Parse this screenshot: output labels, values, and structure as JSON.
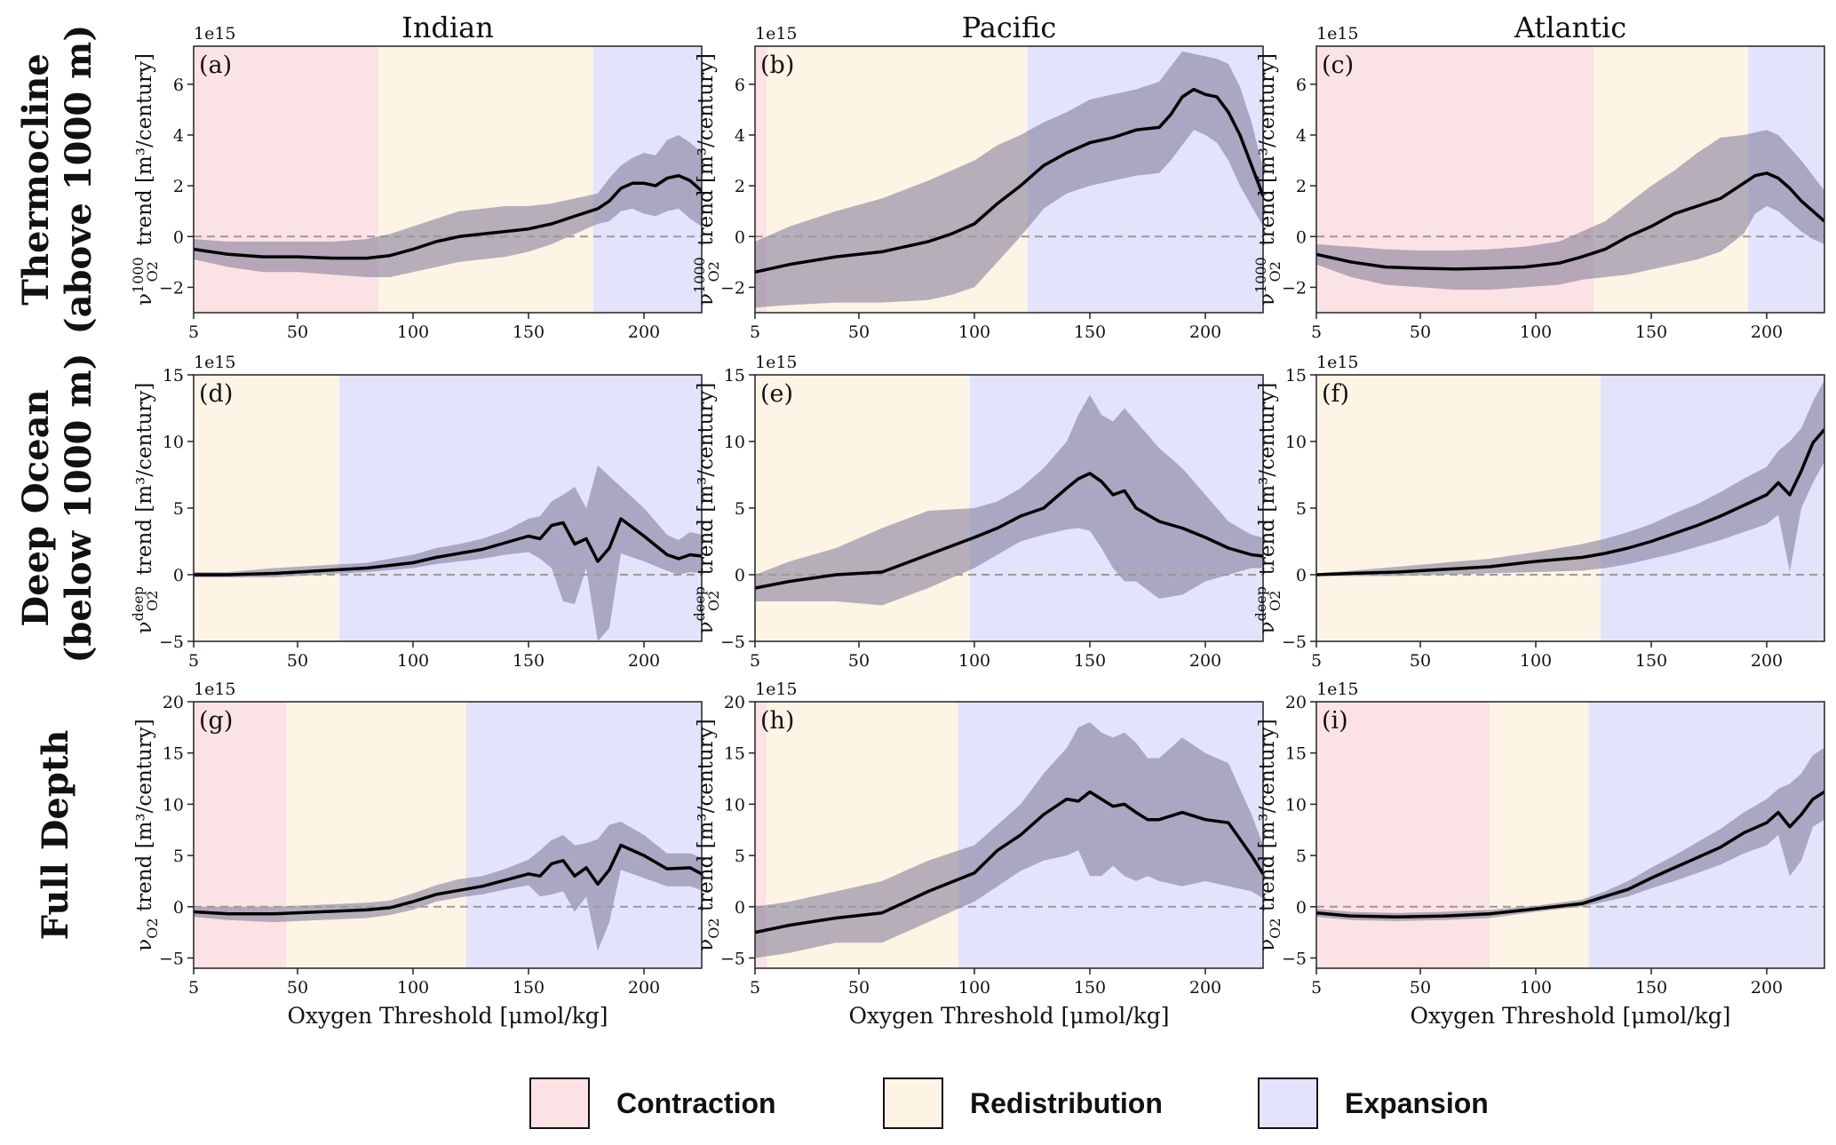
{
  "colors": {
    "contraction": "#fbe2e4",
    "redistribution": "#fdf4e6",
    "expansion": "#e3e3fb",
    "band": "#7c7794",
    "line": "#000000",
    "zero_line": "#9a9a9a"
  },
  "figure": {
    "column_titles": [
      "Indian",
      "Pacific",
      "Atlantic"
    ],
    "row_titles": [
      [
        "Thermocline",
        "(above 1000 m)"
      ],
      [
        "Deep Ocean",
        "(below 1000 m)"
      ],
      [
        "Full Depth"
      ]
    ],
    "xlabel": "Oxygen Threshold [μmol/kg]",
    "exponent_label": "1e15",
    "row_ylabels": [
      {
        "prefix": "ν",
        "sup": "1000",
        "sub": "O2",
        "suffix": " trend [m³/century]"
      },
      {
        "prefix": "ν",
        "sup": "deep",
        "sub": "O2",
        "suffix": " trend [m³/century]"
      },
      {
        "prefix": "ν",
        "sup": "",
        "sub": "O2",
        "suffix": " trend [m³/century]"
      }
    ]
  },
  "legend": {
    "contraction": "Contraction",
    "redistribution": "Redistribution",
    "expansion": "Expansion"
  },
  "chart_data": [
    {
      "type": "line",
      "panel": "(a)",
      "ocean": "Indian",
      "layer": "Thermocline",
      "xlim": [
        5,
        225
      ],
      "ylim": [
        -3,
        7.5
      ],
      "xticks": [
        5,
        50,
        100,
        150,
        200
      ],
      "yticks": [
        -2,
        0,
        2,
        4,
        6
      ],
      "regions": [
        {
          "kind": "contraction",
          "from": 5,
          "to": 85
        },
        {
          "kind": "redistribution",
          "from": 85,
          "to": 178
        },
        {
          "kind": "expansion",
          "from": 178,
          "to": 225
        }
      ],
      "x": [
        5,
        20,
        35,
        50,
        65,
        80,
        90,
        100,
        110,
        120,
        130,
        140,
        150,
        160,
        170,
        180,
        185,
        190,
        195,
        200,
        205,
        210,
        215,
        220,
        225
      ],
      "y": [
        -0.5,
        -0.7,
        -0.8,
        -0.8,
        -0.85,
        -0.85,
        -0.75,
        -0.5,
        -0.2,
        0,
        0.1,
        0.2,
        0.3,
        0.5,
        0.8,
        1.1,
        1.4,
        1.9,
        2.1,
        2.1,
        2.0,
        2.3,
        2.4,
        2.2,
        1.8
      ],
      "lower": [
        -0.9,
        -1.2,
        -1.4,
        -1.4,
        -1.5,
        -1.6,
        -1.6,
        -1.4,
        -1.2,
        -1.0,
        -0.9,
        -0.8,
        -0.6,
        -0.3,
        0.1,
        0.5,
        0.6,
        1.0,
        1.1,
        0.9,
        0.8,
        1.0,
        1.1,
        0.7,
        0.4
      ],
      "upper": [
        -0.1,
        -0.2,
        -0.2,
        -0.2,
        -0.2,
        -0.1,
        0.1,
        0.4,
        0.7,
        1.0,
        1.1,
        1.2,
        1.2,
        1.3,
        1.5,
        1.7,
        2.3,
        2.8,
        3.1,
        3.3,
        3.2,
        3.8,
        4.0,
        3.7,
        3.3
      ]
    },
    {
      "type": "line",
      "panel": "(b)",
      "ocean": "Pacific",
      "layer": "Thermocline",
      "xlim": [
        5,
        225
      ],
      "ylim": [
        -3,
        7.5
      ],
      "xticks": [
        5,
        50,
        100,
        150,
        200
      ],
      "yticks": [
        -2,
        0,
        2,
        4,
        6
      ],
      "regions": [
        {
          "kind": "contraction",
          "from": 5,
          "to": 10
        },
        {
          "kind": "redistribution",
          "from": 10,
          "to": 123
        },
        {
          "kind": "expansion",
          "from": 123,
          "to": 225
        }
      ],
      "x": [
        5,
        20,
        40,
        60,
        80,
        90,
        100,
        110,
        120,
        130,
        140,
        150,
        160,
        170,
        180,
        185,
        190,
        195,
        200,
        205,
        210,
        215,
        220,
        225
      ],
      "y": [
        -1.4,
        -1.1,
        -0.8,
        -0.6,
        -0.2,
        0.1,
        0.5,
        1.3,
        2.0,
        2.8,
        3.3,
        3.7,
        3.9,
        4.2,
        4.3,
        4.8,
        5.5,
        5.8,
        5.6,
        5.5,
        4.9,
        4.0,
        2.8,
        1.6
      ],
      "lower": [
        -2.8,
        -2.7,
        -2.6,
        -2.6,
        -2.5,
        -2.3,
        -2.0,
        -1.0,
        0.0,
        1.1,
        1.7,
        2.0,
        2.2,
        2.4,
        2.5,
        3.0,
        3.6,
        4.2,
        4.0,
        3.7,
        3.0,
        2.0,
        1.2,
        0.4
      ],
      "upper": [
        -0.2,
        0.4,
        1.0,
        1.5,
        2.2,
        2.6,
        3.0,
        3.6,
        4.0,
        4.5,
        4.9,
        5.4,
        5.6,
        5.8,
        6.1,
        6.7,
        7.3,
        7.2,
        7.1,
        7.0,
        6.8,
        5.9,
        4.5,
        2.7
      ]
    },
    {
      "type": "line",
      "panel": "(c)",
      "ocean": "Atlantic",
      "layer": "Thermocline",
      "xlim": [
        5,
        225
      ],
      "ylim": [
        -3,
        7.5
      ],
      "xticks": [
        5,
        50,
        100,
        150,
        200
      ],
      "yticks": [
        -2,
        0,
        2,
        4,
        6
      ],
      "regions": [
        {
          "kind": "contraction",
          "from": 5,
          "to": 125
        },
        {
          "kind": "redistribution",
          "from": 125,
          "to": 192
        },
        {
          "kind": "expansion",
          "from": 192,
          "to": 225
        }
      ],
      "x": [
        5,
        20,
        35,
        50,
        65,
        80,
        95,
        110,
        120,
        130,
        140,
        150,
        160,
        170,
        180,
        190,
        195,
        200,
        205,
        210,
        215,
        220,
        225
      ],
      "y": [
        -0.7,
        -1.0,
        -1.2,
        -1.25,
        -1.28,
        -1.25,
        -1.2,
        -1.05,
        -0.8,
        -0.5,
        0,
        0.4,
        0.9,
        1.2,
        1.5,
        2.1,
        2.4,
        2.5,
        2.3,
        1.9,
        1.4,
        1.0,
        0.6
      ],
      "lower": [
        -1.1,
        -1.6,
        -1.9,
        -2.0,
        -2.1,
        -2.1,
        -2.0,
        -1.9,
        -1.7,
        -1.6,
        -1.5,
        -1.3,
        -1.1,
        -0.9,
        -0.6,
        0.1,
        0.9,
        1.2,
        1.0,
        0.6,
        0.2,
        -0.1,
        -0.3
      ],
      "upper": [
        -0.3,
        -0.4,
        -0.5,
        -0.55,
        -0.55,
        -0.5,
        -0.4,
        -0.2,
        0.2,
        0.6,
        1.3,
        2.0,
        2.6,
        3.3,
        3.9,
        4.0,
        4.1,
        4.2,
        4.0,
        3.5,
        3.0,
        2.4,
        1.8
      ]
    },
    {
      "type": "line",
      "panel": "(d)",
      "ocean": "Indian",
      "layer": "Deep Ocean",
      "xlim": [
        5,
        225
      ],
      "ylim": [
        -5,
        15
      ],
      "xticks": [
        5,
        50,
        100,
        150,
        200
      ],
      "yticks": [
        -5,
        0,
        5,
        10,
        15
      ],
      "regions": [
        {
          "kind": "redistribution",
          "from": 5,
          "to": 68
        },
        {
          "kind": "expansion",
          "from": 68,
          "to": 225
        }
      ],
      "x": [
        5,
        20,
        40,
        60,
        80,
        100,
        110,
        120,
        130,
        140,
        150,
        155,
        160,
        165,
        170,
        175,
        180,
        185,
        190,
        200,
        210,
        215,
        220,
        225
      ],
      "y": [
        0,
        0,
        0.1,
        0.3,
        0.5,
        0.9,
        1.3,
        1.6,
        1.9,
        2.4,
        2.9,
        2.7,
        3.7,
        3.9,
        2.3,
        2.7,
        1.0,
        2.0,
        4.2,
        2.9,
        1.5,
        1.2,
        1.5,
        1.4
      ],
      "lower": [
        -0.2,
        -0.2,
        -0.2,
        0,
        0.2,
        0.5,
        0.8,
        1.0,
        1.2,
        1.5,
        1.7,
        1.2,
        0.5,
        -2.0,
        -2.2,
        0.5,
        -5.0,
        -4.0,
        1.6,
        1.0,
        0.3,
        0.0,
        0.2,
        0.1
      ],
      "upper": [
        0.2,
        0.2,
        0.5,
        0.7,
        0.9,
        1.5,
        2.0,
        2.3,
        2.7,
        3.3,
        4.2,
        4.4,
        5.5,
        6.0,
        6.6,
        5.0,
        8.2,
        7.4,
        6.6,
        5.0,
        3.0,
        2.6,
        3.2,
        3.0
      ]
    },
    {
      "type": "line",
      "panel": "(e)",
      "ocean": "Pacific",
      "layer": "Deep Ocean",
      "xlim": [
        5,
        225
      ],
      "ylim": [
        -5,
        15
      ],
      "xticks": [
        5,
        50,
        100,
        150,
        200
      ],
      "yticks": [
        -5,
        0,
        5,
        10,
        15
      ],
      "regions": [
        {
          "kind": "redistribution",
          "from": 5,
          "to": 98
        },
        {
          "kind": "expansion",
          "from": 98,
          "to": 225
        }
      ],
      "x": [
        5,
        20,
        40,
        60,
        80,
        100,
        110,
        120,
        130,
        140,
        145,
        150,
        155,
        160,
        165,
        170,
        180,
        190,
        200,
        210,
        220,
        225
      ],
      "y": [
        -1.0,
        -0.5,
        0,
        0.2,
        1.5,
        2.8,
        3.5,
        4.4,
        5.0,
        6.5,
        7.2,
        7.6,
        7.0,
        6.0,
        6.3,
        5.0,
        4.0,
        3.5,
        2.8,
        2.0,
        1.5,
        1.4
      ],
      "lower": [
        -2.0,
        -2.0,
        -2.0,
        -2.3,
        -1.0,
        0.5,
        1.5,
        2.5,
        3.0,
        3.4,
        3.5,
        3.3,
        2.0,
        0.5,
        -0.5,
        -0.5,
        -1.8,
        -1.5,
        -0.5,
        0.0,
        0.5,
        0.5
      ],
      "upper": [
        0.0,
        1.0,
        2.0,
        3.5,
        4.8,
        5.0,
        5.5,
        6.5,
        8.0,
        10.0,
        12.0,
        13.5,
        12.0,
        11.5,
        12.5,
        11.5,
        9.5,
        8.0,
        6.0,
        4.0,
        3.0,
        2.8
      ]
    },
    {
      "type": "line",
      "panel": "(f)",
      "ocean": "Atlantic",
      "layer": "Deep Ocean",
      "xlim": [
        5,
        225
      ],
      "ylim": [
        -5,
        15
      ],
      "xticks": [
        5,
        50,
        100,
        150,
        200
      ],
      "yticks": [
        -5,
        0,
        5,
        10,
        15
      ],
      "regions": [
        {
          "kind": "redistribution",
          "from": 5,
          "to": 128
        },
        {
          "kind": "expansion",
          "from": 128,
          "to": 225
        }
      ],
      "x": [
        5,
        20,
        40,
        60,
        80,
        100,
        120,
        130,
        140,
        150,
        160,
        170,
        180,
        190,
        200,
        205,
        210,
        215,
        220,
        225
      ],
      "y": [
        0,
        0.1,
        0.2,
        0.4,
        0.6,
        1.0,
        1.3,
        1.6,
        2.0,
        2.5,
        3.1,
        3.7,
        4.4,
        5.2,
        6.0,
        6.9,
        6.0,
        7.8,
        9.9,
        10.9
      ],
      "lower": [
        -0.1,
        -0.1,
        -0.1,
        0,
        0.1,
        0.2,
        0.3,
        0.5,
        0.8,
        1.2,
        1.6,
        2.1,
        2.6,
        3.2,
        3.8,
        4.5,
        0.2,
        5.0,
        6.9,
        8.5
      ],
      "upper": [
        0.1,
        0.3,
        0.6,
        0.9,
        1.2,
        1.7,
        2.3,
        2.7,
        3.2,
        3.8,
        4.6,
        5.3,
        6.2,
        7.2,
        8.1,
        9.3,
        10.0,
        11.0,
        13.0,
        14.6
      ]
    },
    {
      "type": "line",
      "panel": "(g)",
      "ocean": "Indian",
      "layer": "Full Depth",
      "xlim": [
        5,
        225
      ],
      "ylim": [
        -6,
        20
      ],
      "xticks": [
        5,
        50,
        100,
        150,
        200
      ],
      "yticks": [
        -5,
        0,
        5,
        10,
        15,
        20
      ],
      "regions": [
        {
          "kind": "contraction",
          "from": 5,
          "to": 45
        },
        {
          "kind": "redistribution",
          "from": 45,
          "to": 123
        },
        {
          "kind": "expansion",
          "from": 123,
          "to": 225
        }
      ],
      "x": [
        5,
        20,
        40,
        60,
        80,
        90,
        100,
        110,
        120,
        130,
        140,
        150,
        155,
        160,
        165,
        170,
        175,
        180,
        185,
        190,
        200,
        210,
        220,
        225
      ],
      "y": [
        -0.5,
        -0.7,
        -0.7,
        -0.5,
        -0.3,
        -0.1,
        0.5,
        1.2,
        1.6,
        2.0,
        2.6,
        3.2,
        3.0,
        4.2,
        4.5,
        3.0,
        3.8,
        2.2,
        3.6,
        6.0,
        5.0,
        3.7,
        3.8,
        3.2
      ],
      "lower": [
        -1.0,
        -1.3,
        -1.5,
        -1.3,
        -1.1,
        -0.8,
        -0.3,
        0.5,
        0.9,
        1.2,
        1.7,
        2.1,
        1.0,
        1.2,
        1.5,
        -0.5,
        1.0,
        -4.3,
        -1.5,
        3.6,
        2.8,
        2.0,
        2.0,
        1.6
      ],
      "upper": [
        0,
        0,
        0,
        0.2,
        0.4,
        0.6,
        1.3,
        2.1,
        2.7,
        3.0,
        3.7,
        4.6,
        5.5,
        6.5,
        7.0,
        6.0,
        6.2,
        6.6,
        8.0,
        8.3,
        7.0,
        5.2,
        5.2,
        4.8
      ]
    },
    {
      "type": "line",
      "panel": "(h)",
      "ocean": "Pacific",
      "layer": "Full Depth",
      "xlim": [
        5,
        225
      ],
      "ylim": [
        -6,
        20
      ],
      "xticks": [
        5,
        50,
        100,
        150,
        200
      ],
      "yticks": [
        -5,
        0,
        5,
        10,
        15,
        20
      ],
      "regions": [
        {
          "kind": "contraction",
          "from": 5,
          "to": 10
        },
        {
          "kind": "redistribution",
          "from": 10,
          "to": 93
        },
        {
          "kind": "expansion",
          "from": 93,
          "to": 225
        }
      ],
      "x": [
        5,
        20,
        40,
        60,
        80,
        100,
        110,
        120,
        130,
        140,
        145,
        150,
        155,
        160,
        165,
        170,
        175,
        180,
        190,
        200,
        210,
        220,
        225
      ],
      "y": [
        -2.5,
        -1.8,
        -1.1,
        -0.6,
        1.5,
        3.3,
        5.5,
        7.0,
        9.0,
        10.5,
        10.3,
        11.2,
        10.5,
        9.8,
        10.0,
        9.2,
        8.5,
        8.5,
        9.2,
        8.5,
        8.2,
        5.0,
        3.2
      ],
      "lower": [
        -5.0,
        -4.5,
        -3.5,
        -3.5,
        -1.5,
        0.5,
        2.0,
        3.5,
        4.5,
        5.0,
        5.5,
        3.0,
        3.0,
        4.0,
        3.0,
        2.5,
        3.0,
        2.5,
        2.0,
        2.5,
        2.0,
        1.5,
        0.8
      ],
      "upper": [
        0.0,
        0.5,
        1.5,
        2.5,
        4.5,
        6.0,
        8.0,
        10.0,
        13.0,
        15.5,
        17.5,
        18.0,
        17.0,
        16.5,
        17.0,
        16.0,
        14.5,
        14.5,
        16.5,
        15.0,
        14.0,
        9.0,
        6.0
      ]
    },
    {
      "type": "line",
      "panel": "(i)",
      "ocean": "Atlantic",
      "layer": "Full Depth",
      "xlim": [
        5,
        225
      ],
      "ylim": [
        -6,
        20
      ],
      "xticks": [
        5,
        50,
        100,
        150,
        200
      ],
      "yticks": [
        -5,
        0,
        5,
        10,
        15,
        20
      ],
      "regions": [
        {
          "kind": "contraction",
          "from": 5,
          "to": 80
        },
        {
          "kind": "redistribution",
          "from": 80,
          "to": 123
        },
        {
          "kind": "expansion",
          "from": 123,
          "to": 225
        }
      ],
      "x": [
        5,
        20,
        40,
        60,
        80,
        100,
        120,
        130,
        140,
        150,
        160,
        170,
        180,
        190,
        200,
        205,
        210,
        215,
        220,
        225
      ],
      "y": [
        -0.6,
        -0.9,
        -1.0,
        -0.9,
        -0.7,
        -0.2,
        0.3,
        1.0,
        1.7,
        2.8,
        3.8,
        4.8,
        5.8,
        7.2,
        8.2,
        9.2,
        7.8,
        9.0,
        10.5,
        11.2
      ],
      "lower": [
        -1.0,
        -1.3,
        -1.4,
        -1.3,
        -1.1,
        -0.5,
        0.0,
        0.5,
        1.0,
        1.8,
        2.5,
        3.3,
        4.1,
        5.2,
        6.0,
        7.0,
        3.0,
        4.5,
        7.8,
        8.5
      ],
      "upper": [
        -0.2,
        -0.5,
        -0.6,
        -0.5,
        -0.3,
        0.1,
        0.7,
        1.5,
        2.5,
        3.8,
        5.0,
        6.3,
        7.6,
        9.2,
        10.5,
        11.5,
        12.0,
        13.0,
        14.8,
        15.5
      ]
    }
  ]
}
